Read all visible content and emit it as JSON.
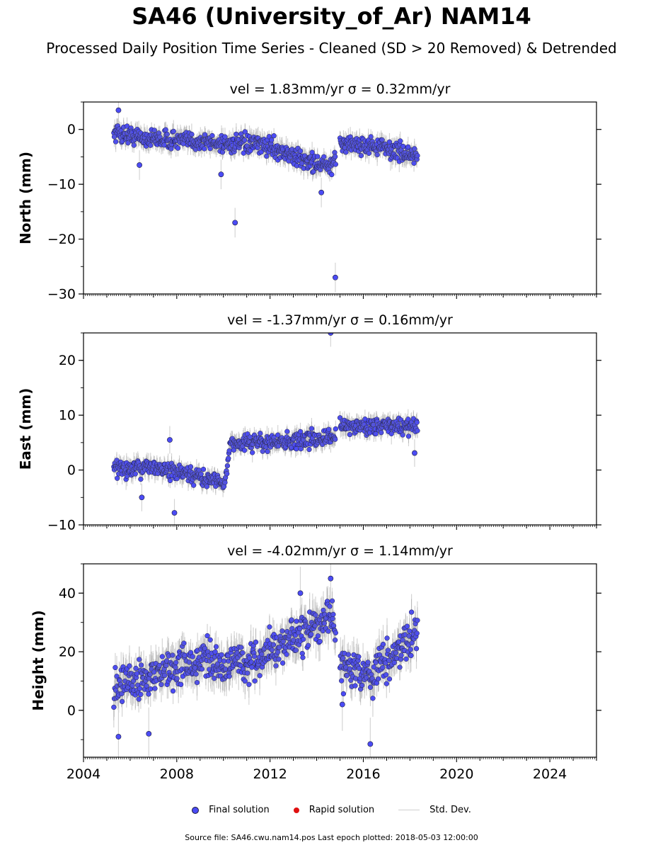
{
  "title": "SA46 (University_of_Ar) NAM14",
  "subtitle": "Processed Daily Position Time Series - Cleaned (SD > 20 Removed) & Detrended",
  "legend": {
    "final": "Final solution",
    "rapid": "Rapid solution",
    "stddev": "Std. Dev."
  },
  "footer": "Source file: SA46.cwu.nam14.pos  Last epoch plotted: 2018-05-03 12:00:00",
  "colors": {
    "final": "#4b4bf5",
    "rapid": "#e01010",
    "stddev": "#d0d0d0",
    "marker_edge": "#1a1a3a"
  },
  "chart_data": [
    {
      "type": "scatter",
      "title": "vel = 1.83mm/yr   σ = 0.32mm/yr",
      "ylabel": "North (mm)",
      "xlim": [
        2004,
        2026
      ],
      "ylim": [
        -30,
        5
      ],
      "yticks": [
        -30,
        -20,
        -10,
        0
      ],
      "yticklabels": [
        "−30",
        "−20",
        "−10",
        "0"
      ],
      "x_axis_labels_shown": false,
      "trend": [
        [
          2005.3,
          -0.5
        ],
        [
          2006.5,
          -1.5
        ],
        [
          2008,
          -2
        ],
        [
          2010,
          -2.5
        ],
        [
          2012,
          -3
        ],
        [
          2013,
          -5
        ],
        [
          2014.7,
          -7
        ],
        [
          2015.0,
          -2.5
        ],
        [
          2016.5,
          -3
        ],
        [
          2018.3,
          -5
        ]
      ],
      "noise": 1.4,
      "sd": 1.5,
      "points": [
        {
          "x": 2005.5,
          "y": 3.5
        },
        {
          "x": 2006.4,
          "y": -6.5
        },
        {
          "x": 2009.9,
          "y": -8.2
        },
        {
          "x": 2010.5,
          "y": -17
        },
        {
          "x": 2014.2,
          "y": -11.5
        },
        {
          "x": 2014.8,
          "y": -27
        }
      ]
    },
    {
      "type": "scatter",
      "title": "vel = -1.37mm/yr   σ = 0.16mm/yr",
      "ylabel": "East (mm)",
      "xlim": [
        2004,
        2026
      ],
      "ylim": [
        -10,
        25
      ],
      "yticks": [
        -10,
        0,
        10,
        20
      ],
      "yticklabels": [
        "−10",
        "0",
        "10",
        "20"
      ],
      "x_axis_labels_shown": false,
      "trend": [
        [
          2005.3,
          0
        ],
        [
          2007,
          0.5
        ],
        [
          2008.5,
          -1
        ],
        [
          2010.1,
          -2
        ],
        [
          2010.3,
          5
        ],
        [
          2012,
          5
        ],
        [
          2014.8,
          6
        ],
        [
          2015.0,
          8
        ],
        [
          2016.5,
          8
        ],
        [
          2018.3,
          8
        ]
      ],
      "noise": 1.3,
      "sd": 1.4,
      "points": [
        {
          "x": 2006.5,
          "y": -5
        },
        {
          "x": 2007.7,
          "y": 5.5
        },
        {
          "x": 2007.9,
          "y": -7.8
        },
        {
          "x": 2014.6,
          "y": 25
        },
        {
          "x": 2018.2,
          "y": 3.1
        }
      ]
    },
    {
      "type": "scatter",
      "title": "vel = -4.02mm/yr   σ = 1.14mm/yr",
      "ylabel": "Height (mm)",
      "xlim": [
        2004,
        2026
      ],
      "ylim": [
        -16,
        50
      ],
      "yticks": [
        0,
        20,
        40
      ],
      "yticklabels": [
        "0",
        "20",
        "40"
      ],
      "xticks": [
        2004,
        2008,
        2012,
        2016,
        2020,
        2024
      ],
      "xticklabels": [
        "2004",
        "2008",
        "2012",
        "2016",
        "2020",
        "2024"
      ],
      "x_axis_labels_shown": true,
      "trend": [
        [
          2005.3,
          8
        ],
        [
          2007,
          12
        ],
        [
          2009,
          17
        ],
        [
          2011,
          16
        ],
        [
          2013,
          24
        ],
        [
          2014.7,
          32
        ],
        [
          2015.0,
          16
        ],
        [
          2016.3,
          12
        ],
        [
          2017.3,
          20
        ],
        [
          2018.3,
          26
        ]
      ],
      "noise": 5.5,
      "sd": 5,
      "points": [
        {
          "x": 2005.5,
          "y": -9
        },
        {
          "x": 2006.8,
          "y": -8
        },
        {
          "x": 2013.3,
          "y": 40
        },
        {
          "x": 2014.6,
          "y": 45
        },
        {
          "x": 2016.3,
          "y": -11.5
        },
        {
          "x": 2015.1,
          "y": 2
        }
      ]
    }
  ]
}
